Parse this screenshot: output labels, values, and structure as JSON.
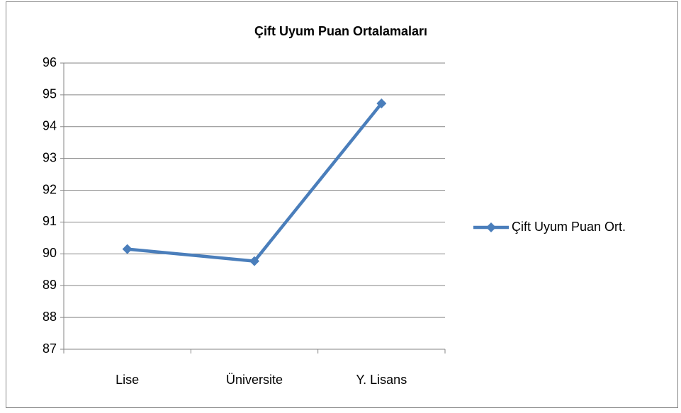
{
  "chart_data": {
    "type": "line",
    "title": "Çift Uyum Puan Ortalamaları",
    "categories": [
      "Lise",
      "Üniversite",
      "Y. Lisans"
    ],
    "series": [
      {
        "name": "Çift Uyum Puan Ort.",
        "color": "#4a7ebb",
        "values": [
          90.15,
          89.77,
          94.73
        ]
      }
    ],
    "ylim": [
      87,
      96
    ],
    "yticks": [
      87,
      88,
      89,
      90,
      91,
      92,
      93,
      94,
      95,
      96
    ],
    "grid": true,
    "legend": "right"
  }
}
